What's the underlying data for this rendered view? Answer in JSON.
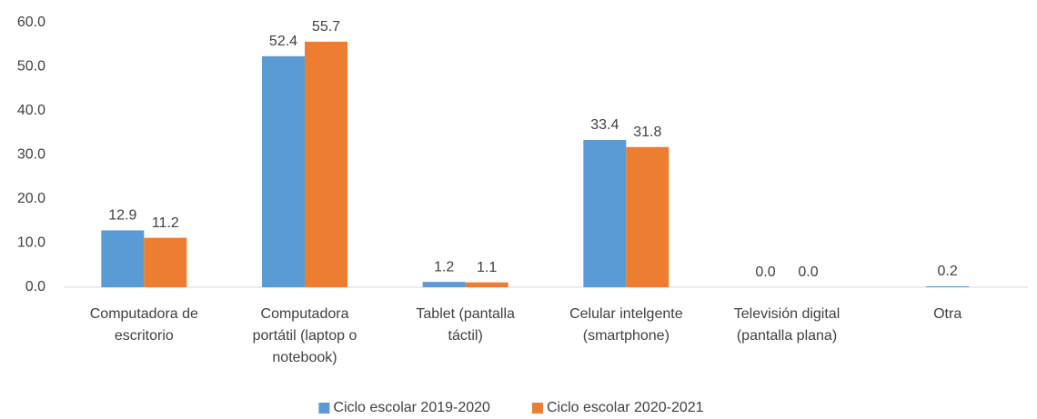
{
  "chart_data": {
    "type": "bar",
    "categories": [
      "Computadora de escritorio",
      "Computadora portátil (laptop o notebook)",
      "Tablet (pantalla táctil)",
      "Celular intelgente (smartphone)",
      "Televisión digital (pantalla plana)",
      "Otra"
    ],
    "series": [
      {
        "name": "Ciclo escolar 2019-2020",
        "color": "#5b9bd5",
        "values": [
          12.9,
          52.4,
          1.2,
          33.4,
          0.0,
          0.2
        ],
        "value_labels": [
          "12.9",
          "52.4",
          "1.2",
          "33.4",
          "0.0",
          "0.2"
        ]
      },
      {
        "name": "Ciclo escolar 2020-2021",
        "color": "#ed7d31",
        "values": [
          11.2,
          55.7,
          1.1,
          31.8,
          0.0,
          null
        ],
        "value_labels": [
          "11.2",
          "55.7",
          "1.1",
          "31.8",
          "0.0",
          null
        ]
      }
    ],
    "ylim": [
      0,
      60
    ],
    "yticks": [
      {
        "value": 0,
        "label": "0.0"
      },
      {
        "value": 10,
        "label": "10.0"
      },
      {
        "value": 20,
        "label": "20.0"
      },
      {
        "value": 30,
        "label": "30.0"
      },
      {
        "value": 40,
        "label": "40.0"
      },
      {
        "value": 50,
        "label": "50.0"
      },
      {
        "value": 60,
        "label": "60.0"
      }
    ],
    "grid": false,
    "legend": "bottom"
  }
}
